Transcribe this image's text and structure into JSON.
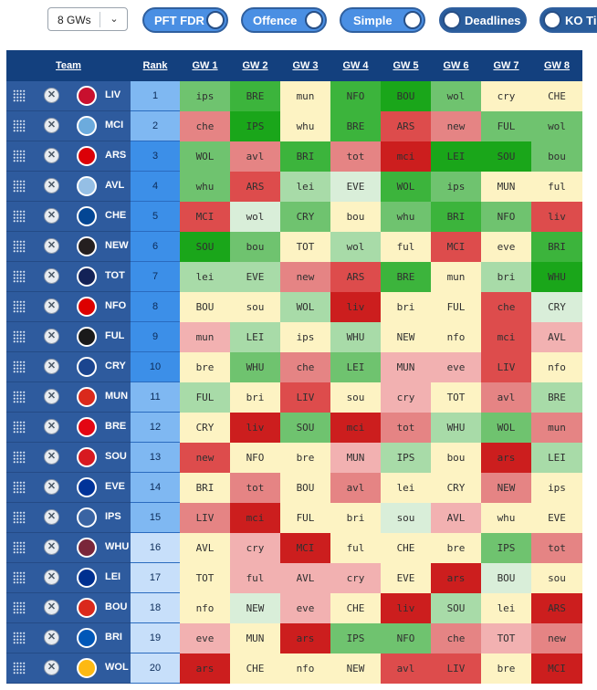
{
  "controls": {
    "gw_select": {
      "value": "8 GWs"
    },
    "toggles": [
      {
        "label": "PFT FDR"
      },
      {
        "label": "Offence"
      },
      {
        "label": "Simple"
      },
      {
        "label": "Deadlines"
      },
      {
        "label": "KO Tim"
      }
    ]
  },
  "header": {
    "team": "Team",
    "rank": "Rank",
    "gameweeks": [
      "GW 1",
      "GW 2",
      "GW 3",
      "GW 4",
      "GW 5",
      "GW 6",
      "GW 7",
      "GW 8"
    ]
  },
  "colors": {
    "dark_green": "#1aa61a",
    "green": "#3cb43c",
    "mid_green": "#6fc36f",
    "light_green": "#a8dba8",
    "pale_green": "#d9eed9",
    "neutral": "#fdf3c3",
    "light_red": "#f2b1b1",
    "red": "#e58484",
    "mid_red": "#dd4c4c",
    "dark_red": "#cc1e1e"
  },
  "teams": [
    {
      "name": "LIV",
      "rank": "1",
      "crest": "#c8102e",
      "rank_color": "#7fb8f2",
      "fixtures": [
        [
          "ips",
          "mid_green"
        ],
        [
          "BRE",
          "green"
        ],
        [
          "mun",
          "neutral"
        ],
        [
          "NFO",
          "green"
        ],
        [
          "BOU",
          "dark_green"
        ],
        [
          "wol",
          "mid_green"
        ],
        [
          "cry",
          "neutral"
        ],
        [
          "CHE",
          "neutral"
        ]
      ]
    },
    {
      "name": "MCI",
      "rank": "2",
      "crest": "#6cabdd",
      "rank_color": "#7fb8f2",
      "fixtures": [
        [
          "che",
          "red"
        ],
        [
          "IPS",
          "dark_green"
        ],
        [
          "whu",
          "neutral"
        ],
        [
          "BRE",
          "green"
        ],
        [
          "ARS",
          "mid_red"
        ],
        [
          "new",
          "red"
        ],
        [
          "FUL",
          "mid_green"
        ],
        [
          "wol",
          "mid_green"
        ]
      ]
    },
    {
      "name": "ARS",
      "rank": "3",
      "crest": "#db0007",
      "rank_color": "#3c8fe8",
      "fixtures": [
        [
          "WOL",
          "mid_green"
        ],
        [
          "avl",
          "red"
        ],
        [
          "BRI",
          "green"
        ],
        [
          "tot",
          "red"
        ],
        [
          "mci",
          "dark_red"
        ],
        [
          "LEI",
          "dark_green"
        ],
        [
          "SOU",
          "dark_green"
        ],
        [
          "bou",
          "mid_green"
        ]
      ]
    },
    {
      "name": "AVL",
      "rank": "4",
      "crest": "#95bfe5",
      "rank_color": "#3c8fe8",
      "fixtures": [
        [
          "whu",
          "mid_green"
        ],
        [
          "ARS",
          "mid_red"
        ],
        [
          "lei",
          "light_green"
        ],
        [
          "EVE",
          "pale_green"
        ],
        [
          "WOL",
          "green"
        ],
        [
          "ips",
          "mid_green"
        ],
        [
          "MUN",
          "neutral"
        ],
        [
          "ful",
          "neutral"
        ]
      ]
    },
    {
      "name": "CHE",
      "rank": "5",
      "crest": "#034694",
      "rank_color": "#3c8fe8",
      "fixtures": [
        [
          "MCI",
          "mid_red"
        ],
        [
          "wol",
          "pale_green"
        ],
        [
          "CRY",
          "mid_green"
        ],
        [
          "bou",
          "neutral"
        ],
        [
          "whu",
          "mid_green"
        ],
        [
          "BRI",
          "green"
        ],
        [
          "NFO",
          "mid_green"
        ],
        [
          "liv",
          "mid_red"
        ]
      ]
    },
    {
      "name": "NEW",
      "rank": "6",
      "crest": "#241f20",
      "rank_color": "#3c8fe8",
      "fixtures": [
        [
          "SOU",
          "dark_green"
        ],
        [
          "bou",
          "mid_green"
        ],
        [
          "TOT",
          "neutral"
        ],
        [
          "wol",
          "light_green"
        ],
        [
          "ful",
          "neutral"
        ],
        [
          "MCI",
          "mid_red"
        ],
        [
          "eve",
          "neutral"
        ],
        [
          "BRI",
          "green"
        ]
      ]
    },
    {
      "name": "TOT",
      "rank": "7",
      "crest": "#132257",
      "rank_color": "#3c8fe8",
      "fixtures": [
        [
          "lei",
          "light_green"
        ],
        [
          "EVE",
          "light_green"
        ],
        [
          "new",
          "red"
        ],
        [
          "ARS",
          "mid_red"
        ],
        [
          "BRE",
          "green"
        ],
        [
          "mun",
          "neutral"
        ],
        [
          "bri",
          "light_green"
        ],
        [
          "WHU",
          "dark_green"
        ]
      ]
    },
    {
      "name": "NFO",
      "rank": "8",
      "crest": "#dd0000",
      "rank_color": "#3c8fe8",
      "fixtures": [
        [
          "BOU",
          "neutral"
        ],
        [
          "sou",
          "neutral"
        ],
        [
          "WOL",
          "light_green"
        ],
        [
          "liv",
          "dark_red"
        ],
        [
          "bri",
          "neutral"
        ],
        [
          "FUL",
          "neutral"
        ],
        [
          "che",
          "mid_red"
        ],
        [
          "CRY",
          "pale_green"
        ]
      ]
    },
    {
      "name": "FUL",
      "rank": "9",
      "crest": "#1a1a1a",
      "rank_color": "#3c8fe8",
      "fixtures": [
        [
          "mun",
          "light_red"
        ],
        [
          "LEI",
          "light_green"
        ],
        [
          "ips",
          "neutral"
        ],
        [
          "WHU",
          "light_green"
        ],
        [
          "NEW",
          "neutral"
        ],
        [
          "nfo",
          "neutral"
        ],
        [
          "mci",
          "mid_red"
        ],
        [
          "AVL",
          "light_red"
        ]
      ]
    },
    {
      "name": "CRY",
      "rank": "10",
      "crest": "#1b458f",
      "rank_color": "#3c8fe8",
      "fixtures": [
        [
          "bre",
          "neutral"
        ],
        [
          "WHU",
          "mid_green"
        ],
        [
          "che",
          "red"
        ],
        [
          "LEI",
          "mid_green"
        ],
        [
          "MUN",
          "light_red"
        ],
        [
          "eve",
          "light_red"
        ],
        [
          "LIV",
          "mid_red"
        ],
        [
          "nfo",
          "neutral"
        ]
      ]
    },
    {
      "name": "MUN",
      "rank": "11",
      "crest": "#da291c",
      "rank_color": "#7fb8f2",
      "fixtures": [
        [
          "FUL",
          "light_green"
        ],
        [
          "bri",
          "neutral"
        ],
        [
          "LIV",
          "mid_red"
        ],
        [
          "sou",
          "neutral"
        ],
        [
          "cry",
          "light_red"
        ],
        [
          "TOT",
          "neutral"
        ],
        [
          "avl",
          "red"
        ],
        [
          "BRE",
          "light_green"
        ]
      ]
    },
    {
      "name": "BRE",
      "rank": "12",
      "crest": "#e30613",
      "rank_color": "#7fb8f2",
      "fixtures": [
        [
          "CRY",
          "neutral"
        ],
        [
          "liv",
          "dark_red"
        ],
        [
          "SOU",
          "mid_green"
        ],
        [
          "mci",
          "dark_red"
        ],
        [
          "tot",
          "red"
        ],
        [
          "WHU",
          "light_green"
        ],
        [
          "WOL",
          "mid_green"
        ],
        [
          "mun",
          "red"
        ]
      ]
    },
    {
      "name": "SOU",
      "rank": "13",
      "crest": "#d71920",
      "rank_color": "#7fb8f2",
      "fixtures": [
        [
          "new",
          "mid_red"
        ],
        [
          "NFO",
          "neutral"
        ],
        [
          "bre",
          "neutral"
        ],
        [
          "MUN",
          "light_red"
        ],
        [
          "IPS",
          "light_green"
        ],
        [
          "bou",
          "neutral"
        ],
        [
          "ars",
          "dark_red"
        ],
        [
          "LEI",
          "light_green"
        ]
      ]
    },
    {
      "name": "EVE",
      "rank": "14",
      "crest": "#003399",
      "rank_color": "#7fb8f2",
      "fixtures": [
        [
          "BRI",
          "neutral"
        ],
        [
          "tot",
          "red"
        ],
        [
          "BOU",
          "neutral"
        ],
        [
          "avl",
          "red"
        ],
        [
          "lei",
          "neutral"
        ],
        [
          "CRY",
          "neutral"
        ],
        [
          "NEW",
          "red"
        ],
        [
          "ips",
          "neutral"
        ]
      ]
    },
    {
      "name": "IPS",
      "rank": "15",
      "crest": "#3a64a3",
      "rank_color": "#7fb8f2",
      "fixtures": [
        [
          "LIV",
          "red"
        ],
        [
          "mci",
          "dark_red"
        ],
        [
          "FUL",
          "neutral"
        ],
        [
          "bri",
          "neutral"
        ],
        [
          "sou",
          "pale_green"
        ],
        [
          "AVL",
          "light_red"
        ],
        [
          "whu",
          "neutral"
        ],
        [
          "EVE",
          "neutral"
        ]
      ]
    },
    {
      "name": "WHU",
      "rank": "16",
      "crest": "#7a263a",
      "rank_color": "#c7dffa",
      "fixtures": [
        [
          "AVL",
          "neutral"
        ],
        [
          "cry",
          "light_red"
        ],
        [
          "MCI",
          "dark_red"
        ],
        [
          "ful",
          "neutral"
        ],
        [
          "CHE",
          "neutral"
        ],
        [
          "bre",
          "neutral"
        ],
        [
          "IPS",
          "mid_green"
        ],
        [
          "tot",
          "red"
        ]
      ]
    },
    {
      "name": "LEI",
      "rank": "17",
      "crest": "#003090",
      "rank_color": "#c7dffa",
      "fixtures": [
        [
          "TOT",
          "neutral"
        ],
        [
          "ful",
          "light_red"
        ],
        [
          "AVL",
          "light_red"
        ],
        [
          "cry",
          "light_red"
        ],
        [
          "EVE",
          "neutral"
        ],
        [
          "ars",
          "dark_red"
        ],
        [
          "BOU",
          "pale_green"
        ],
        [
          "sou",
          "neutral"
        ]
      ]
    },
    {
      "name": "BOU",
      "rank": "18",
      "crest": "#da291c",
      "rank_color": "#c7dffa",
      "fixtures": [
        [
          "nfo",
          "neutral"
        ],
        [
          "NEW",
          "pale_green"
        ],
        [
          "eve",
          "light_red"
        ],
        [
          "CHE",
          "neutral"
        ],
        [
          "liv",
          "dark_red"
        ],
        [
          "SOU",
          "light_green"
        ],
        [
          "lei",
          "neutral"
        ],
        [
          "ARS",
          "dark_red"
        ]
      ]
    },
    {
      "name": "BRI",
      "rank": "19",
      "crest": "#0057b8",
      "rank_color": "#c7dffa",
      "fixtures": [
        [
          "eve",
          "light_red"
        ],
        [
          "MUN",
          "neutral"
        ],
        [
          "ars",
          "dark_red"
        ],
        [
          "IPS",
          "mid_green"
        ],
        [
          "NFO",
          "mid_green"
        ],
        [
          "che",
          "red"
        ],
        [
          "TOT",
          "light_red"
        ],
        [
          "new",
          "red"
        ]
      ]
    },
    {
      "name": "WOL",
      "rank": "20",
      "crest": "#fdb913",
      "rank_color": "#c7dffa",
      "fixtures": [
        [
          "ars",
          "dark_red"
        ],
        [
          "CHE",
          "neutral"
        ],
        [
          "nfo",
          "neutral"
        ],
        [
          "NEW",
          "neutral"
        ],
        [
          "avl",
          "mid_red"
        ],
        [
          "LIV",
          "mid_red"
        ],
        [
          "bre",
          "neutral"
        ],
        [
          "MCI",
          "dark_red"
        ]
      ]
    }
  ]
}
